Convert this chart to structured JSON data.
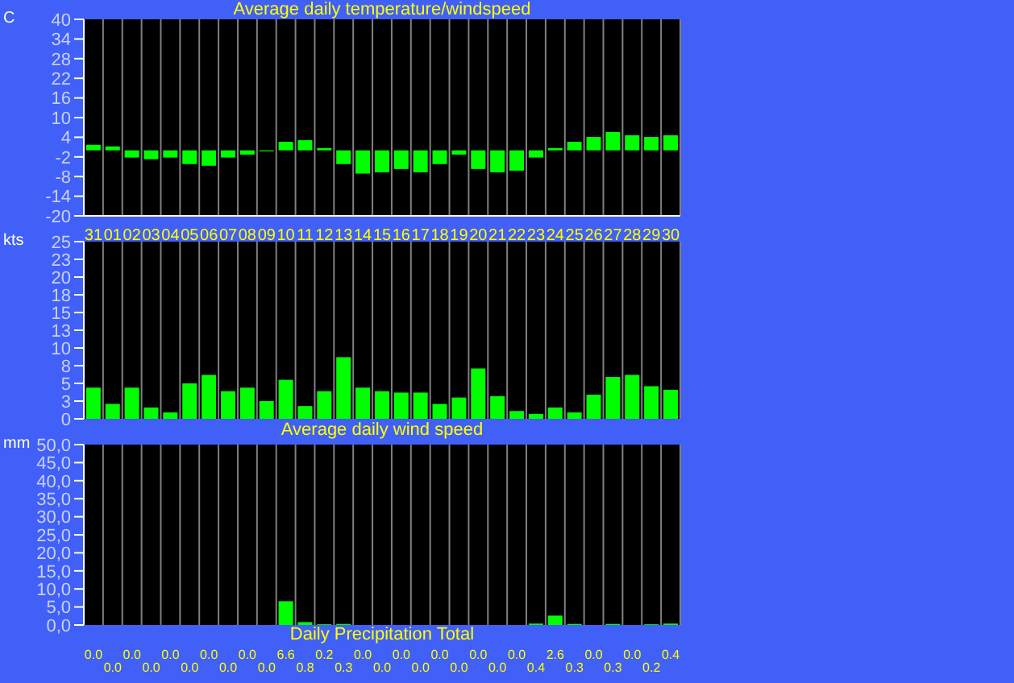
{
  "chart_data": [
    {
      "type": "bar",
      "title": "Average daily temperature/windspeed",
      "ylabel": "C",
      "categories": [
        "31",
        "01",
        "02",
        "03",
        "04",
        "05",
        "06",
        "07",
        "08",
        "09",
        "10",
        "11",
        "12",
        "13",
        "14",
        "15",
        "16",
        "17",
        "18",
        "19",
        "20",
        "21",
        "22",
        "23",
        "24",
        "25",
        "26",
        "27",
        "28",
        "29",
        "30"
      ],
      "values": [
        1.7,
        1.2,
        -2.2,
        -2.7,
        -2.2,
        -4.2,
        -4.7,
        -2.2,
        -1.3,
        -0.3,
        2.6,
        3.1,
        0.7,
        -4.2,
        -7.1,
        -6.7,
        -5.7,
        -6.7,
        -4.2,
        -1.3,
        -5.7,
        -6.7,
        -6.2,
        -2.2,
        0.7,
        2.6,
        4.1,
        5.6,
        4.6,
        4.1,
        4.6
      ],
      "color": "#00ff00",
      "ylim": [
        -20,
        40
      ],
      "yticks": [
        40,
        34,
        28,
        22,
        16,
        10,
        4,
        -2,
        -8,
        -14,
        -20
      ],
      "grid": "x"
    },
    {
      "type": "bar",
      "title": "Average daily wind speed",
      "ylabel": "kts",
      "categories": [
        null,
        null,
        null,
        null,
        null,
        null,
        null,
        null,
        null,
        null,
        null,
        null,
        null,
        null,
        null,
        null,
        null,
        null,
        null,
        null,
        null,
        null,
        null,
        null,
        null,
        null,
        null,
        null,
        null,
        null,
        null
      ],
      "values": [
        4.4,
        2.1,
        4.4,
        1.6,
        0.9,
        5.0,
        6.2,
        3.9,
        4.4,
        2.5,
        5.5,
        1.8,
        3.9,
        8.7,
        4.4,
        3.9,
        3.7,
        3.7,
        2.1,
        3.0,
        7.1,
        3.2,
        1.1,
        0.7,
        1.6,
        0.9,
        3.4,
        5.9,
        6.2,
        4.6,
        4.1
      ],
      "color": "#00ff00",
      "ylim": [
        0,
        25
      ],
      "yticks": [
        25,
        {
          "value": 22.5,
          "label": "23"
        },
        20,
        {
          "value": 17.5,
          "label": "18"
        },
        15,
        {
          "value": 12.5,
          "label": "13"
        },
        10,
        {
          "value": 7.5,
          "label": "8"
        },
        5,
        {
          "value": 2.5,
          "label": "3"
        },
        0
      ],
      "grid": "x",
      "tick_labels": "y"
    },
    {
      "type": "bar",
      "title": "Daily Precipitation Total",
      "ylabel": "mm",
      "categories": [
        null,
        null,
        null,
        null,
        null,
        null,
        null,
        null,
        null,
        null,
        null,
        null,
        null,
        null,
        null,
        null,
        null,
        null,
        null,
        null,
        null,
        null,
        null,
        null,
        null,
        null,
        null,
        null,
        null,
        null,
        null
      ],
      "values": [
        0.0,
        0.0,
        0.0,
        0.0,
        0.0,
        0.0,
        0.0,
        0.0,
        0.0,
        0.0,
        6.6,
        0.8,
        0.2,
        0.3,
        0.0,
        0.0,
        0.0,
        0.0,
        0.0,
        0.0,
        0.0,
        0.0,
        0.0,
        0.4,
        2.6,
        0.3,
        0.0,
        0.3,
        0.0,
        0.2,
        0.4
      ],
      "value_labels": [
        "0.0",
        "0.0",
        "0.0",
        "0.0",
        "0.0",
        "0.0",
        "0.0",
        "0.0",
        "0.0",
        "0.0",
        "6.6",
        "0.8",
        "0.2",
        "0.3",
        "0.0",
        "0.0",
        "0.0",
        "0.0",
        "0.0",
        "0.0",
        "0.0",
        "0.0",
        "0.0",
        "0.4",
        "2.6",
        "0.3",
        "0.0",
        "0.3",
        "0.0",
        "0.2",
        "0.4"
      ],
      "color": "#00ff00",
      "ylim": [
        0,
        50
      ],
      "yticks": [
        {
          "value": 50,
          "label": "50,0"
        },
        {
          "value": 45,
          "label": "45,0"
        },
        {
          "value": 40,
          "label": "40,0"
        },
        {
          "value": 35,
          "label": "35,0"
        },
        {
          "value": 30,
          "label": "30,0"
        },
        {
          "value": 25,
          "label": "25,0"
        },
        {
          "value": 20,
          "label": "20,0"
        },
        {
          "value": 15,
          "label": "15,0"
        },
        {
          "value": 10,
          "label": "10,0"
        },
        {
          "value": 5,
          "label": "5,0"
        },
        {
          "value": 0,
          "label": "0,0"
        }
      ],
      "grid": "x",
      "tick_labels": "y"
    }
  ]
}
